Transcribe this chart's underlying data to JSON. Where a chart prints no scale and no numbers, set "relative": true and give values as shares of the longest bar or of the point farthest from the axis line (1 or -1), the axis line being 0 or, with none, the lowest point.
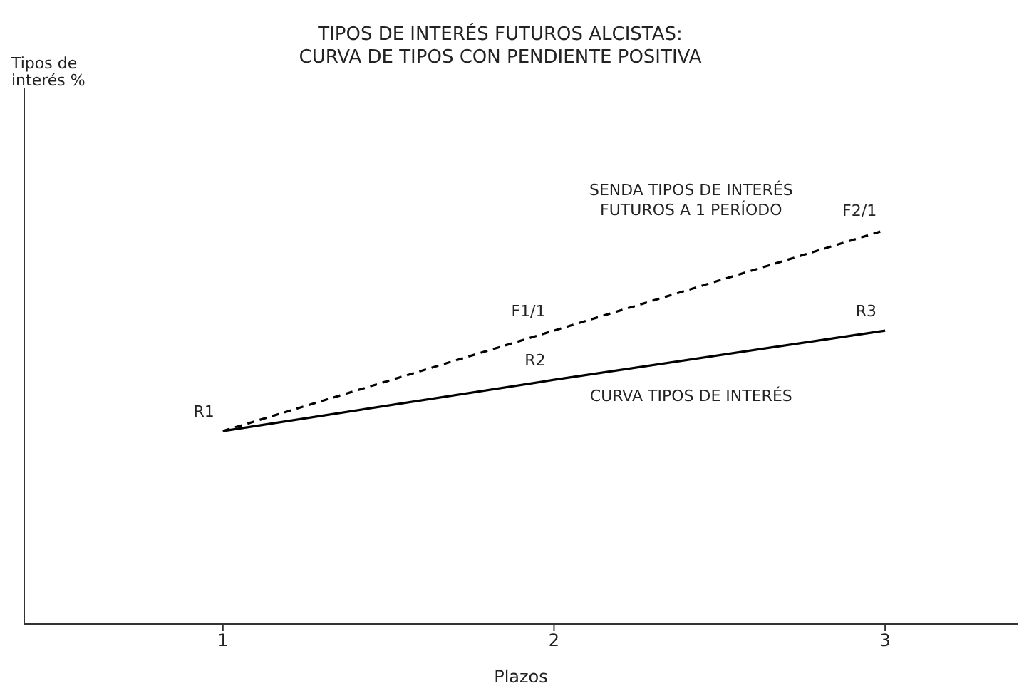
{
  "chart_data": {
    "type": "line",
    "title": "TIPOS DE INTERÉS FUTUROS ALCISTAS:",
    "subtitle": "CURVA DE TIPOS CON PENDIENTE POSITIVA",
    "xlabel": "Plazos",
    "relative": true,
    "x": [
      1,
      2,
      3
    ],
    "xlim": [
      0.4,
      3.4
    ],
    "xticks": [
      1,
      2,
      3
    ],
    "series": [
      {
        "name": "SENDA TIPOS DE INTERÉS FUTUROS A 1 PERÍODO",
        "color": "#000000",
        "line_style": "dashed",
        "values": [
          0.49,
          0.745,
          1
        ]
      },
      {
        "name": "CURVA TIPOS DE INTERÉS",
        "color": "#000000",
        "line_style": "solid",
        "values": [
          0.49,
          0.62,
          0.745
        ]
      }
    ],
    "annotations": [
      "Tipos de interés %",
      {
        "text": "R1",
        "x": 1,
        "y": 0.49
      },
      {
        "text": "R2",
        "x": 2,
        "y": 0.62
      },
      {
        "text": "R3",
        "x": 3,
        "y": 0.745
      },
      {
        "text": "F1/1",
        "x": 2,
        "y": 0.745
      },
      {
        "text": "F2/1",
        "x": 3,
        "y": 1
      }
    ]
  }
}
